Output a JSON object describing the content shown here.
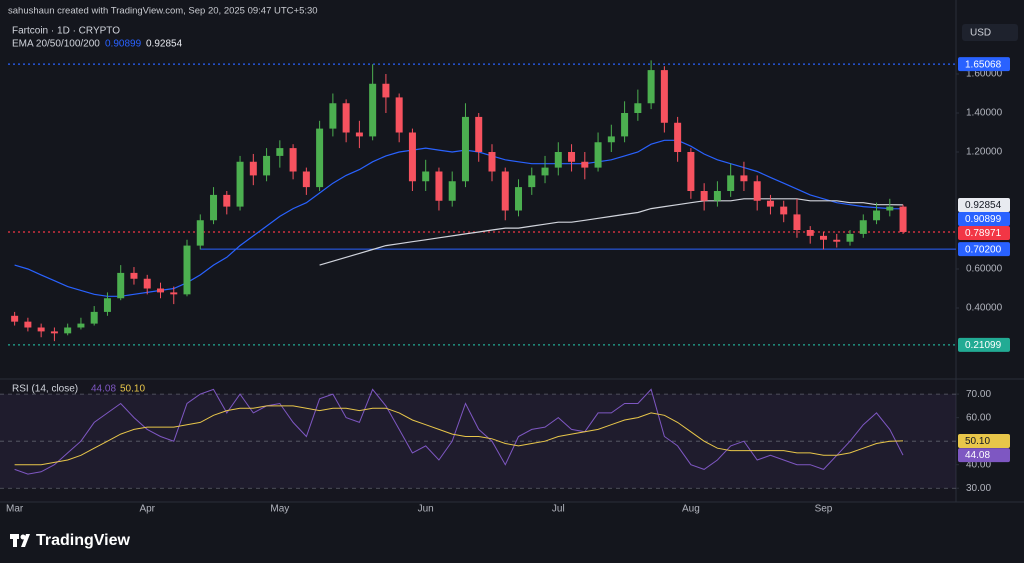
{
  "header": {
    "credit": "sahushaun created with TradingView.com, Sep 20, 2025 09:47 UTC+5:30"
  },
  "brand": "TradingView",
  "chart_data": [
    {
      "type": "candlestick",
      "title": "Fartcoin · 1D · CRYPTO",
      "currency": "USD",
      "indicator_label": "EMA 20/50/100/200",
      "up_color": "#4caf50",
      "down_color": "#f7525f",
      "categories": [
        "Mar",
        null,
        null,
        null,
        null,
        null,
        null,
        null,
        null,
        null,
        "Apr",
        null,
        null,
        null,
        null,
        null,
        null,
        null,
        null,
        null,
        "May",
        null,
        null,
        null,
        null,
        null,
        null,
        null,
        null,
        null,
        null,
        "Jun",
        null,
        null,
        null,
        null,
        null,
        null,
        null,
        null,
        null,
        "Jul",
        null,
        null,
        null,
        null,
        null,
        null,
        null,
        null,
        null,
        "Aug",
        null,
        null,
        null,
        null,
        null,
        null,
        null,
        null,
        null,
        "Sep",
        null,
        null,
        null,
        null,
        null,
        null
      ],
      "open": [
        0.36,
        0.33,
        0.3,
        0.28,
        0.27,
        0.3,
        0.32,
        0.38,
        0.45,
        0.58,
        0.55,
        0.5,
        0.48,
        0.47,
        0.72,
        0.85,
        0.98,
        0.92,
        1.15,
        1.08,
        1.18,
        1.22,
        1.1,
        1.02,
        1.32,
        1.45,
        1.3,
        1.28,
        1.55,
        1.48,
        1.3,
        1.05,
        1.1,
        0.95,
        1.05,
        1.38,
        1.2,
        1.1,
        0.9,
        1.02,
        1.08,
        1.12,
        1.2,
        1.15,
        1.12,
        1.25,
        1.28,
        1.4,
        1.45,
        1.62,
        1.35,
        1.2,
        1.0,
        0.95,
        1.0,
        1.08,
        1.05,
        0.95,
        0.92,
        0.88,
        0.8,
        0.77,
        0.75,
        0.74,
        0.78,
        0.85,
        0.9,
        0.92
      ],
      "high": [
        0.38,
        0.35,
        0.32,
        0.3,
        0.32,
        0.35,
        0.41,
        0.48,
        0.62,
        0.61,
        0.57,
        0.53,
        0.51,
        0.75,
        0.88,
        1.02,
        1.0,
        1.18,
        1.19,
        1.22,
        1.26,
        1.24,
        1.12,
        1.36,
        1.5,
        1.47,
        1.36,
        1.65,
        1.6,
        1.5,
        1.32,
        1.16,
        1.12,
        1.1,
        1.45,
        1.4,
        1.24,
        1.12,
        1.06,
        1.12,
        1.18,
        1.25,
        1.24,
        1.2,
        1.3,
        1.34,
        1.46,
        1.52,
        1.67,
        1.64,
        1.38,
        1.22,
        1.04,
        1.05,
        1.14,
        1.15,
        1.08,
        0.98,
        0.95,
        0.96,
        0.82,
        0.79,
        0.78,
        0.8,
        0.88,
        0.94,
        0.96,
        0.93
      ],
      "low": [
        0.31,
        0.28,
        0.25,
        0.23,
        0.26,
        0.29,
        0.31,
        0.36,
        0.44,
        0.52,
        0.47,
        0.45,
        0.42,
        0.46,
        0.7,
        0.83,
        0.88,
        0.9,
        1.03,
        1.05,
        1.12,
        1.06,
        0.98,
        1.0,
        1.28,
        1.25,
        1.22,
        1.26,
        1.4,
        1.25,
        1.0,
        1.0,
        0.9,
        0.92,
        1.02,
        1.15,
        1.05,
        0.85,
        0.87,
        0.98,
        1.04,
        1.08,
        1.1,
        1.06,
        1.1,
        1.2,
        1.25,
        1.36,
        1.42,
        1.3,
        1.15,
        0.96,
        0.9,
        0.92,
        0.97,
        1.0,
        0.9,
        0.88,
        0.84,
        0.76,
        0.73,
        0.7,
        0.71,
        0.72,
        0.76,
        0.83,
        0.87,
        0.78
      ],
      "close": [
        0.33,
        0.3,
        0.28,
        0.27,
        0.3,
        0.32,
        0.38,
        0.45,
        0.58,
        0.55,
        0.5,
        0.48,
        0.47,
        0.72,
        0.85,
        0.98,
        0.92,
        1.15,
        1.08,
        1.18,
        1.22,
        1.1,
        1.02,
        1.32,
        1.45,
        1.3,
        1.28,
        1.55,
        1.48,
        1.3,
        1.05,
        1.1,
        0.95,
        1.05,
        1.38,
        1.2,
        1.1,
        0.9,
        1.02,
        1.08,
        1.12,
        1.2,
        1.15,
        1.12,
        1.25,
        1.28,
        1.4,
        1.45,
        1.62,
        1.35,
        1.2,
        1.0,
        0.95,
        1.0,
        1.08,
        1.05,
        0.95,
        0.92,
        0.88,
        0.8,
        0.77,
        0.75,
        0.74,
        0.78,
        0.85,
        0.9,
        0.92,
        0.79
      ],
      "series": [
        {
          "color": "#2962ff",
          "values": [
            0.62,
            0.6,
            0.57,
            0.54,
            0.51,
            0.49,
            0.47,
            0.46,
            0.46,
            0.47,
            0.48,
            0.49,
            0.5,
            0.53,
            0.57,
            0.62,
            0.66,
            0.72,
            0.77,
            0.82,
            0.87,
            0.91,
            0.94,
            0.99,
            1.04,
            1.08,
            1.11,
            1.15,
            1.18,
            1.2,
            1.21,
            1.22,
            1.21,
            1.2,
            1.21,
            1.2,
            1.18,
            1.16,
            1.15,
            1.14,
            1.14,
            1.14,
            1.14,
            1.14,
            1.15,
            1.16,
            1.18,
            1.2,
            1.24,
            1.26,
            1.26,
            1.23,
            1.19,
            1.16,
            1.14,
            1.12,
            1.1,
            1.07,
            1.04,
            1.01,
            0.98,
            0.96,
            0.94,
            0.93,
            0.92,
            0.915,
            0.91,
            0.90899
          ]
        },
        {
          "color": "#d1d4dc",
          "values": [
            null,
            null,
            null,
            null,
            null,
            null,
            null,
            null,
            null,
            null,
            null,
            null,
            null,
            null,
            null,
            null,
            null,
            null,
            null,
            null,
            null,
            null,
            null,
            0.62,
            0.64,
            0.66,
            0.68,
            0.7,
            0.72,
            0.73,
            0.74,
            0.75,
            0.76,
            0.77,
            0.78,
            0.79,
            0.8,
            0.81,
            0.81,
            0.82,
            0.83,
            0.84,
            0.84,
            0.85,
            0.86,
            0.87,
            0.88,
            0.89,
            0.91,
            0.92,
            0.93,
            0.94,
            0.95,
            0.95,
            0.95,
            0.96,
            0.96,
            0.96,
            0.96,
            0.96,
            0.95,
            0.95,
            0.95,
            0.94,
            0.94,
            0.93,
            0.93,
            0.92854
          ]
        }
      ],
      "ylim": [
        0.041,
        1.877
      ],
      "yticks": [
        {
          "value": 1.6,
          "label": "1.60000"
        },
        {
          "value": 1.4,
          "label": "1.40000"
        },
        {
          "value": 1.2,
          "label": "1.20000"
        },
        {
          "value": 0.6,
          "label": "0.60000"
        },
        {
          "value": 0.4,
          "label": "0.40000"
        }
      ],
      "badges": [
        {
          "value": 1.65068,
          "label": "1.65068",
          "color": "#2962ff",
          "line": "dotted"
        },
        {
          "value": 0.92854,
          "label": "0.92854",
          "color": "#e8eaf0",
          "line": "none"
        },
        {
          "value": 0.90899,
          "label": "0.90899",
          "color": "#2962ff",
          "line": "none"
        },
        {
          "value": 0.78971,
          "label": "0.78971",
          "color": "#f23645",
          "line": "dotted"
        },
        {
          "value": 0.702,
          "label": "0.70200",
          "color": "#2962ff",
          "line": "solid"
        },
        {
          "value": 0.21099,
          "label": "0.21099",
          "color": "#22ab94",
          "line": "dotted"
        }
      ]
    },
    {
      "type": "line",
      "title": "RSI (14, close)",
      "series": [
        {
          "color": "#7e57c2",
          "values": [
            38,
            36,
            37,
            40,
            45,
            50,
            58,
            62,
            66,
            60,
            55,
            52,
            50,
            66,
            70,
            72,
            62,
            70,
            62,
            65,
            66,
            58,
            52,
            68,
            70,
            60,
            58,
            72,
            65,
            55,
            45,
            48,
            42,
            50,
            66,
            55,
            50,
            40,
            52,
            55,
            56,
            60,
            55,
            54,
            62,
            62,
            66,
            66,
            72,
            52,
            48,
            40,
            38,
            42,
            48,
            50,
            42,
            44,
            42,
            40,
            40,
            38,
            44,
            50,
            57,
            62,
            55,
            44.08
          ]
        },
        {
          "color": "#e8c64a",
          "values": [
            40,
            40,
            40,
            41,
            42,
            44,
            47,
            50,
            53,
            55,
            56,
            56,
            56,
            57,
            58,
            61,
            63,
            64,
            64,
            65,
            65,
            65,
            64,
            63,
            64,
            64,
            63,
            64,
            64,
            62,
            59,
            57,
            55,
            53,
            52,
            52,
            51,
            49,
            48,
            49,
            50,
            52,
            53,
            54,
            55,
            57,
            59,
            60,
            62,
            61,
            58,
            54,
            50,
            47,
            46,
            46,
            46,
            46,
            46,
            45,
            45,
            44,
            44,
            45,
            47,
            49,
            50,
            50.1
          ]
        }
      ],
      "ylim": [
        25,
        76
      ],
      "yticks": [
        {
          "value": 70,
          "label": "70.00"
        },
        {
          "value": 60,
          "label": "60.00"
        },
        {
          "value": 40,
          "label": "40.00"
        },
        {
          "value": 30,
          "label": "30.00"
        }
      ],
      "guides": [
        70,
        50,
        30
      ],
      "badges": [
        {
          "value": 50.1,
          "label": "50.10",
          "color": "#e8c64a"
        },
        {
          "value": 44.08,
          "label": "44.08",
          "color": "#7e57c2"
        }
      ]
    }
  ]
}
